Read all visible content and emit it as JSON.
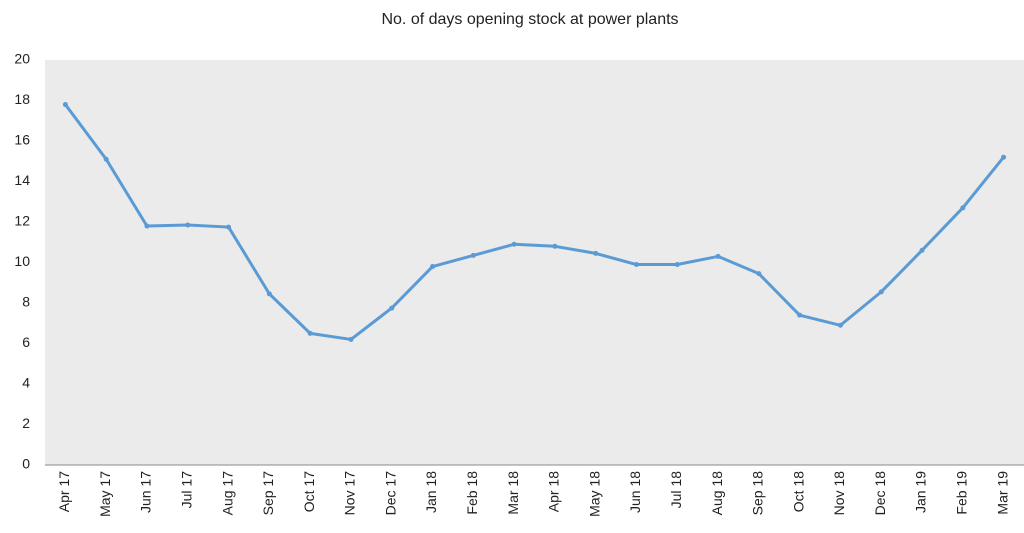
{
  "chart_data": {
    "type": "line",
    "title": "No. of days opening stock at power plants",
    "categories": [
      "Apr 17",
      "May 17",
      "Jun 17",
      "Jul 17",
      "Aug 17",
      "Sep 17",
      "Oct 17",
      "Nov 17",
      "Dec 17",
      "Jan 18",
      "Feb 18",
      "Mar 18",
      "Apr 18",
      "May 18",
      "Jun 18",
      "Jul 18",
      "Aug 18",
      "Sep 18",
      "Oct 18",
      "Nov 18",
      "Dec 18",
      "Jan 19",
      "Feb 19",
      "Mar 19"
    ],
    "series": [
      {
        "color": "#5b9bd5",
        "values": [
          17.8,
          15.1,
          11.8,
          11.85,
          11.75,
          8.45,
          6.5,
          6.2,
          7.75,
          9.8,
          10.35,
          10.9,
          10.8,
          10.45,
          9.9,
          9.9,
          10.3,
          9.45,
          7.4,
          6.9,
          8.55,
          10.6,
          12.7,
          15.2
        ]
      }
    ],
    "ylim": [
      0,
      20
    ],
    "yticks": [
      0,
      2,
      4,
      6,
      8,
      10,
      12,
      14,
      16,
      18,
      20
    ],
    "grid": false,
    "plot_background": "#ebebeb"
  }
}
